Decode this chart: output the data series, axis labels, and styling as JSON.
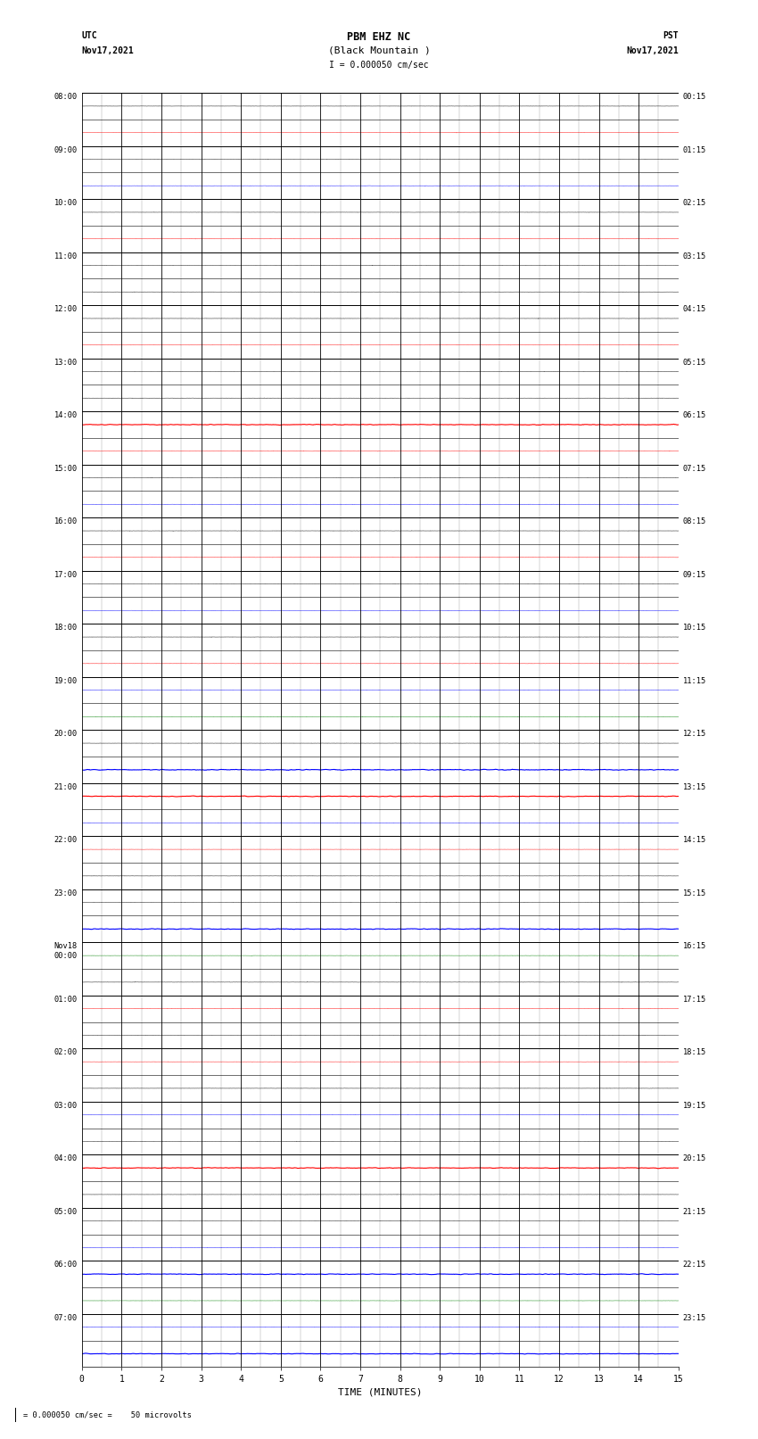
{
  "title_line1": "PBM EHZ NC",
  "title_line2": "(Black Mountain )",
  "scale_label": "I = 0.000050 cm/sec",
  "label_left_top": "UTC",
  "label_left_date": "Nov17,2021",
  "label_right_top": "PST",
  "label_right_date": "Nov17,2021",
  "xlabel": "TIME (MINUTES)",
  "footer_label": "= 0.000050 cm/sec =    50 microvolts",
  "utc_times": [
    "08:00",
    "",
    "09:00",
    "",
    "10:00",
    "",
    "11:00",
    "",
    "12:00",
    "",
    "13:00",
    "",
    "14:00",
    "",
    "15:00",
    "",
    "16:00",
    "",
    "17:00",
    "",
    "18:00",
    "",
    "19:00",
    "",
    "20:00",
    "",
    "21:00",
    "",
    "22:00",
    "",
    "23:00",
    "",
    "Nov18\n00:00",
    "",
    "01:00",
    "",
    "02:00",
    "",
    "03:00",
    "",
    "04:00",
    "",
    "05:00",
    "",
    "06:00",
    "",
    "07:00",
    ""
  ],
  "pst_times": [
    "00:15",
    "",
    "01:15",
    "",
    "02:15",
    "",
    "03:15",
    "",
    "04:15",
    "",
    "05:15",
    "",
    "06:15",
    "",
    "07:15",
    "",
    "08:15",
    "",
    "09:15",
    "",
    "10:15",
    "",
    "11:15",
    "",
    "12:15",
    "",
    "13:15",
    "",
    "14:15",
    "",
    "15:15",
    "",
    "16:15",
    "",
    "17:15",
    "",
    "18:15",
    "",
    "19:15",
    "",
    "20:15",
    "",
    "21:15",
    "",
    "22:15",
    "",
    "23:15",
    ""
  ],
  "num_rows": 48,
  "x_ticks": [
    0,
    1,
    2,
    3,
    4,
    5,
    6,
    7,
    8,
    9,
    10,
    11,
    12,
    13,
    14,
    15
  ],
  "bg_color": "#ffffff",
  "noise_seed": 42,
  "row_specs": {
    "0": {
      "color": "#000000",
      "amp": 0.012,
      "spike_prob": 0.001
    },
    "1": {
      "color": "#ff0000",
      "amp": 0.008,
      "spike_prob": 0.002
    },
    "2": {
      "color": "#000000",
      "amp": 0.01,
      "spike_prob": 0.001
    },
    "3": {
      "color": "#0000ff",
      "amp": 0.01,
      "spike_prob": 0.002
    },
    "4": {
      "color": "#000000",
      "amp": 0.009,
      "spike_prob": 0.001
    },
    "5": {
      "color": "#ff0000",
      "amp": 0.008,
      "spike_prob": 0.002
    },
    "6": {
      "color": "#000000",
      "amp": 0.009,
      "spike_prob": 0.001
    },
    "7": {
      "color": "#000000",
      "amp": 0.009,
      "spike_prob": 0.001
    },
    "8": {
      "color": "#000000",
      "amp": 0.01,
      "spike_prob": 0.001
    },
    "9": {
      "color": "#ff0000",
      "amp": 0.008,
      "spike_prob": 0.002
    },
    "10": {
      "color": "#000000",
      "amp": 0.009,
      "spike_prob": 0.001
    },
    "11": {
      "color": "#000000",
      "amp": 0.009,
      "spike_prob": 0.001
    },
    "12": {
      "color": "#ff0000",
      "amp": 0.45,
      "spike_prob": 0.0
    },
    "13": {
      "color": "#ff0000",
      "amp": 0.008,
      "spike_prob": 0.002
    },
    "14": {
      "color": "#000000",
      "amp": 0.009,
      "spike_prob": 0.001
    },
    "15": {
      "color": "#0000ff",
      "amp": 0.012,
      "spike_prob": 0.002
    },
    "16": {
      "color": "#000000",
      "amp": 0.009,
      "spike_prob": 0.001
    },
    "17": {
      "color": "#ff0000",
      "amp": 0.008,
      "spike_prob": 0.002
    },
    "18": {
      "color": "#000000",
      "amp": 0.009,
      "spike_prob": 0.001
    },
    "19": {
      "color": "#0000ff",
      "amp": 0.009,
      "spike_prob": 0.001
    },
    "20": {
      "color": "#000000",
      "amp": 0.009,
      "spike_prob": 0.001
    },
    "21": {
      "color": "#ff0000",
      "amp": 0.012,
      "spike_prob": 0.003
    },
    "22": {
      "color": "#0000ff",
      "amp": 0.012,
      "spike_prob": 0.002
    },
    "23": {
      "color": "#008000",
      "amp": 0.009,
      "spike_prob": 0.001
    },
    "24": {
      "color": "#000000",
      "amp": 0.009,
      "spike_prob": 0.001
    },
    "25": {
      "color": "#0000ff",
      "amp": 0.45,
      "spike_prob": 0.0
    },
    "26": {
      "color": "#ff0000",
      "amp": 0.45,
      "spike_prob": 0.0
    },
    "27": {
      "color": "#0000ff",
      "amp": 0.009,
      "spike_prob": 0.001
    },
    "28": {
      "color": "#ff0000",
      "amp": 0.008,
      "spike_prob": 0.002
    },
    "29": {
      "color": "#000000",
      "amp": 0.009,
      "spike_prob": 0.001
    },
    "30": {
      "color": "#000000",
      "amp": 0.009,
      "spike_prob": 0.001
    },
    "31": {
      "color": "#0000ff",
      "amp": 0.45,
      "spike_prob": 0.0
    },
    "32": {
      "color": "#008000",
      "amp": 0.009,
      "spike_prob": 0.001
    },
    "33": {
      "color": "#000000",
      "amp": 0.009,
      "spike_prob": 0.001
    },
    "34": {
      "color": "#ff0000",
      "amp": 0.008,
      "spike_prob": 0.002
    },
    "35": {
      "color": "#000000",
      "amp": 0.009,
      "spike_prob": 0.001
    },
    "36": {
      "color": "#ff0000",
      "amp": 0.008,
      "spike_prob": 0.002
    },
    "37": {
      "color": "#000000",
      "amp": 0.009,
      "spike_prob": 0.001
    },
    "38": {
      "color": "#0000ff",
      "amp": 0.009,
      "spike_prob": 0.001
    },
    "39": {
      "color": "#000000",
      "amp": 0.009,
      "spike_prob": 0.001
    },
    "40": {
      "color": "#ff0000",
      "amp": 0.45,
      "spike_prob": 0.0
    },
    "41": {
      "color": "#000000",
      "amp": 0.009,
      "spike_prob": 0.001
    },
    "42": {
      "color": "#000000",
      "amp": 0.009,
      "spike_prob": 0.001
    },
    "43": {
      "color": "#0000ff",
      "amp": 0.009,
      "spike_prob": 0.001
    },
    "44": {
      "color": "#0000ff",
      "amp": 0.45,
      "spike_prob": 0.0
    },
    "45": {
      "color": "#008000",
      "amp": 0.009,
      "spike_prob": 0.001
    },
    "46": {
      "color": "#0000ff",
      "amp": 0.009,
      "spike_prob": 0.001
    },
    "47": {
      "color": "#0000ff",
      "amp": 0.45,
      "spike_prob": 0.0
    }
  }
}
